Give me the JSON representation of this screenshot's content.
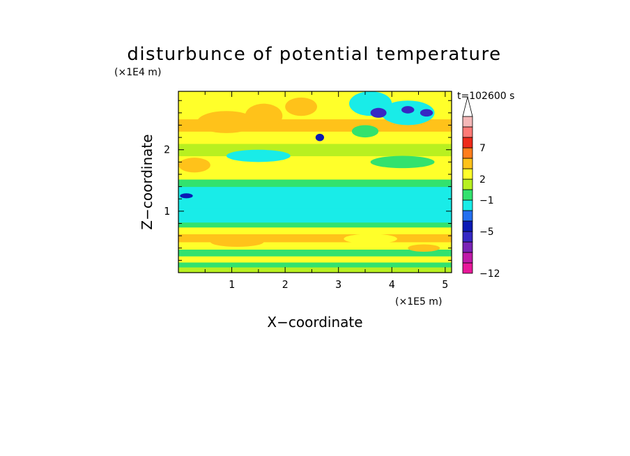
{
  "chart_data": {
    "type": "heatmap",
    "title": "disturbunce of potential temperature",
    "xlabel": "X−coordinate",
    "ylabel": "Z−coordinate",
    "x_unit": "(×1E5 m)",
    "y_unit": "(×1E4 m)",
    "time_label": "t=102600 s",
    "xlim": [
      0,
      5.12
    ],
    "ylim": [
      0,
      2.95
    ],
    "x_ticks": [
      "1",
      "2",
      "3",
      "4",
      "5"
    ],
    "y_ticks": [
      "1",
      "2"
    ],
    "colorbar": {
      "levels": [
        -12,
        -10,
        -8,
        -7,
        -5,
        -4,
        -2,
        -1,
        1,
        2,
        3,
        5,
        7,
        8,
        10
      ],
      "tick_labels": [
        "7",
        "2",
        "−1",
        "−5",
        "−12"
      ],
      "colors": [
        "#e8189a",
        "#c01aa8",
        "#7a22b6",
        "#3628c4",
        "#0b1ab5",
        "#2470f0",
        "#19ece8",
        "#32e26e",
        "#b8f020",
        "#ffff2a",
        "#ffc21a",
        "#ff7d1c",
        "#ee2a1a",
        "#ff7a76",
        "#f4b8b8"
      ],
      "extend": "max"
    },
    "bands": [
      {
        "z": [
          0.0,
          0.09
        ],
        "value": 1.5
      },
      {
        "z": [
          0.09,
          0.17
        ],
        "value": 0
      },
      {
        "z": [
          0.17,
          0.27
        ],
        "value": 2
      },
      {
        "z": [
          0.27,
          0.38
        ],
        "value": 0
      },
      {
        "z": [
          0.38,
          0.5
        ],
        "value": 2.5
      },
      {
        "z": [
          0.5,
          0.63
        ],
        "value": 4
      },
      {
        "z": [
          0.63,
          0.74
        ],
        "value": 2
      },
      {
        "z": [
          0.74,
          0.82
        ],
        "value": 0
      },
      {
        "z": [
          0.82,
          1.06
        ],
        "value": -1.5
      },
      {
        "z": [
          1.06,
          1.4
        ],
        "value": -1.5
      },
      {
        "z": [
          1.4,
          1.52
        ],
        "value": 0
      },
      {
        "z": [
          1.52,
          1.72
        ],
        "value": 2
      },
      {
        "z": [
          1.72,
          1.9
        ],
        "value": 2.5
      },
      {
        "z": [
          1.9,
          2.1
        ],
        "value": 1.5
      },
      {
        "z": [
          2.1,
          2.3
        ],
        "value": 2.5
      },
      {
        "z": [
          2.3,
          2.5
        ],
        "value": 3
      },
      {
        "z": [
          2.5,
          2.7
        ],
        "value": 2
      },
      {
        "z": [
          2.7,
          2.95
        ],
        "value": 2.5
      }
    ],
    "features": [
      {
        "x": 0.9,
        "z": 2.45,
        "rx": 0.55,
        "rz": 0.18,
        "value": 4
      },
      {
        "x": 1.6,
        "z": 2.55,
        "rx": 0.35,
        "rz": 0.2,
        "value": 4
      },
      {
        "x": 2.3,
        "z": 2.7,
        "rx": 0.3,
        "rz": 0.15,
        "value": 4
      },
      {
        "x": 0.3,
        "z": 1.75,
        "rx": 0.3,
        "rz": 0.12,
        "value": 4
      },
      {
        "x": 1.5,
        "z": 1.9,
        "rx": 0.6,
        "rz": 0.1,
        "value": -1.5
      },
      {
        "x": 4.2,
        "z": 1.8,
        "rx": 0.6,
        "rz": 0.1,
        "value": 0
      },
      {
        "x": 3.5,
        "z": 2.3,
        "rx": 0.25,
        "rz": 0.1,
        "value": 0
      },
      {
        "x": 4.3,
        "z": 2.6,
        "rx": 0.5,
        "rz": 0.2,
        "value": -1.5
      },
      {
        "x": 3.6,
        "z": 2.75,
        "rx": 0.4,
        "rz": 0.2,
        "value": -1.5
      },
      {
        "x": 3.75,
        "z": 2.6,
        "rx": 0.15,
        "rz": 0.08,
        "value": -6
      },
      {
        "x": 4.3,
        "z": 2.65,
        "rx": 0.12,
        "rz": 0.06,
        "value": -6
      },
      {
        "x": 4.65,
        "z": 2.6,
        "rx": 0.12,
        "rz": 0.06,
        "value": -6
      },
      {
        "x": 2.65,
        "z": 2.2,
        "rx": 0.08,
        "rz": 0.06,
        "value": -4.5
      },
      {
        "x": 0.15,
        "z": 1.25,
        "rx": 0.12,
        "rz": 0.04,
        "value": -4.5
      },
      {
        "x": 3.6,
        "z": 0.55,
        "rx": 0.5,
        "rz": 0.08,
        "value": 2.5
      },
      {
        "x": 1.1,
        "z": 0.5,
        "rx": 0.5,
        "rz": 0.08,
        "value": 4
      },
      {
        "x": 4.6,
        "z": 0.4,
        "rx": 0.3,
        "rz": 0.06,
        "value": 4
      }
    ]
  }
}
